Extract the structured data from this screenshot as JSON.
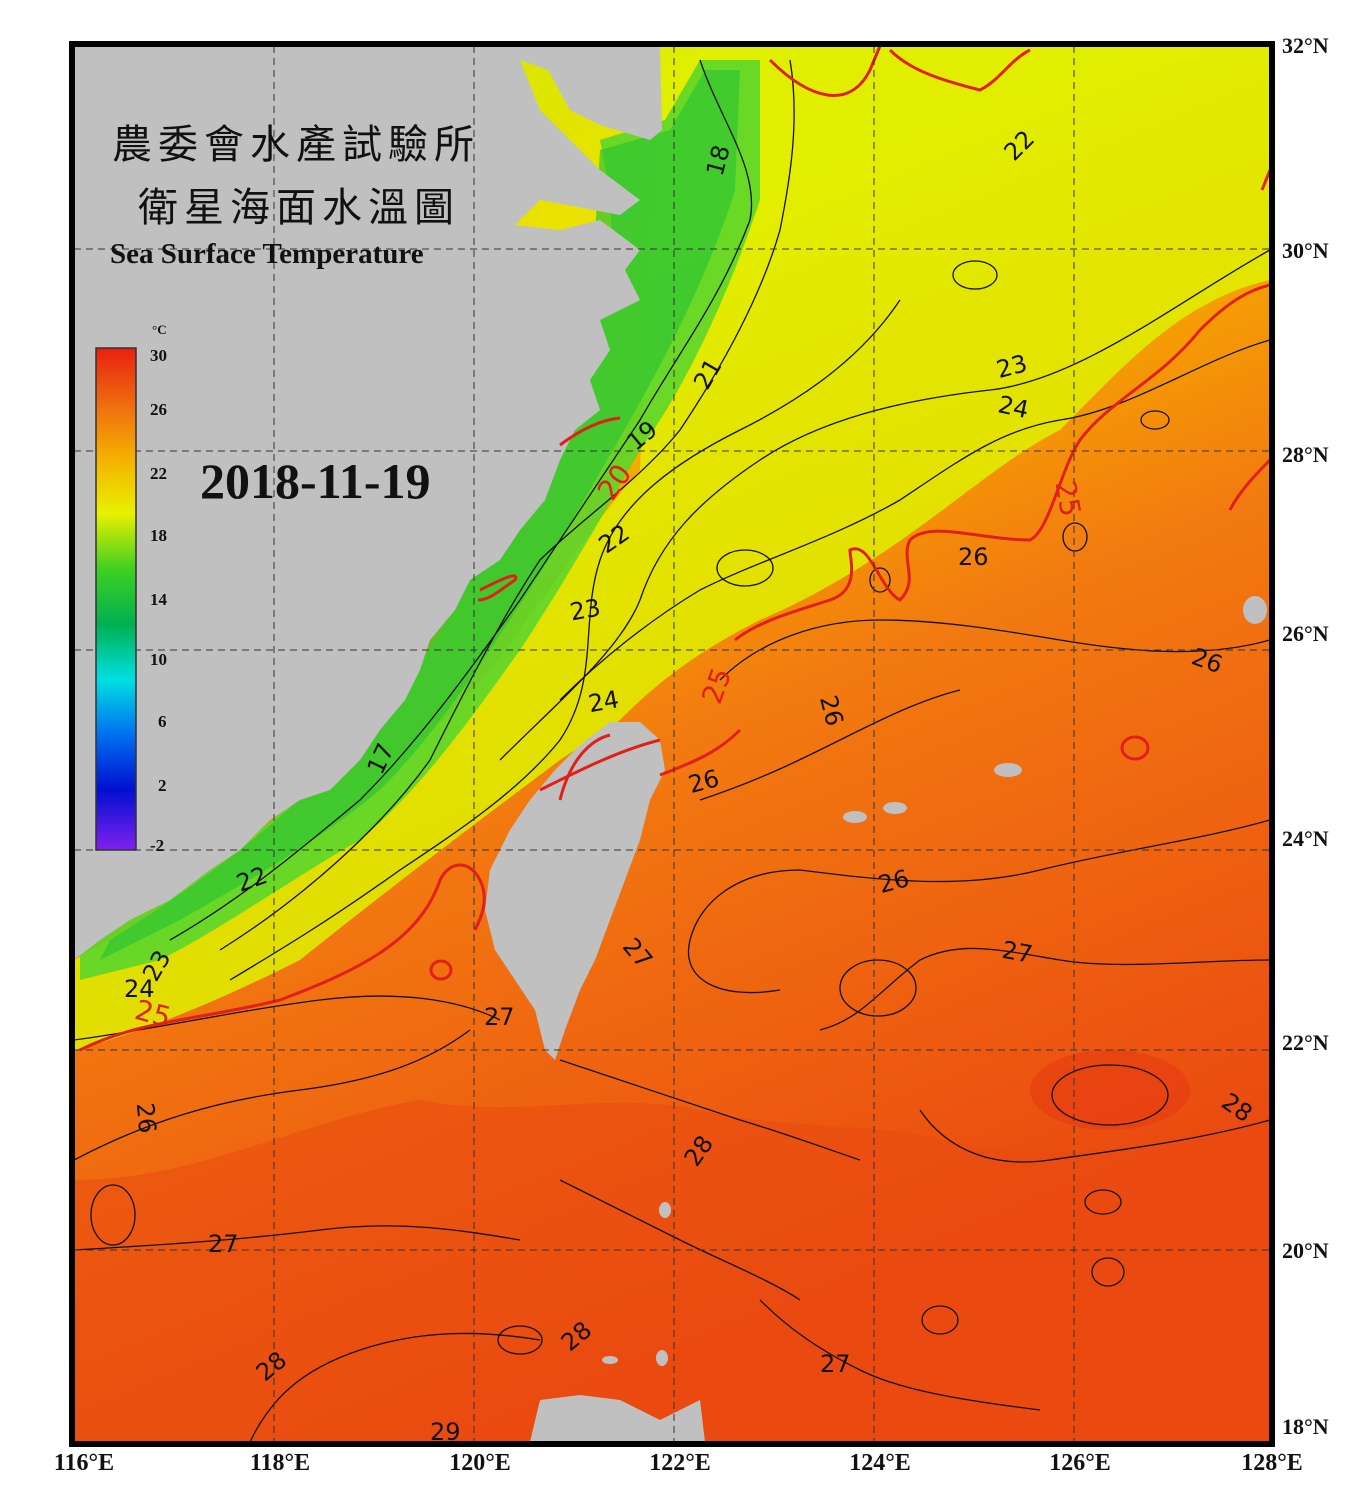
{
  "title_cn_1": "農委會水產試驗所",
  "title_cn_2": "衛星海面水溫圖",
  "title_en": "Sea Surface Temperature",
  "date": "2018-11-19",
  "colorbar": {
    "unit": "°C",
    "ticks": [
      "30",
      "26",
      "22",
      "18",
      "14",
      "10",
      "6",
      "2",
      "-2"
    ]
  },
  "lat_labels": [
    "32°N",
    "30°N",
    "28°N",
    "26°N",
    "24°N",
    "22°N",
    "20°N",
    "18°N"
  ],
  "lon_labels": [
    "116°E",
    "118°E",
    "120°E",
    "122°E",
    "124°E",
    "126°E",
    "128°E"
  ],
  "isotherm_labels": {
    "l18": "18",
    "l19": "19",
    "l20": "20",
    "l21": "21",
    "l22a": "22",
    "l22b": "22",
    "l22c": "22",
    "l23a": "23",
    "l23b": "23",
    "l23c": "23",
    "l24a": "24",
    "l24b": "24",
    "l24c": "24",
    "l25a": "25",
    "l25b": "25",
    "l25c": "25",
    "l26a": "26",
    "l26b": "26",
    "l26c": "26",
    "l26d": "26",
    "l26e": "26",
    "l26f": "26",
    "l27a": "27",
    "l27b": "27",
    "l27c": "27",
    "l27d": "27",
    "l27e": "27",
    "l28a": "28",
    "l28b": "28",
    "l28c": "28",
    "l28d": "28",
    "l29": "29",
    "l17": "17"
  },
  "colors": {
    "land": "#c0c0c0",
    "frame": "#000000",
    "isotherm_25": "#e0201a",
    "isotherm": "#111111"
  }
}
